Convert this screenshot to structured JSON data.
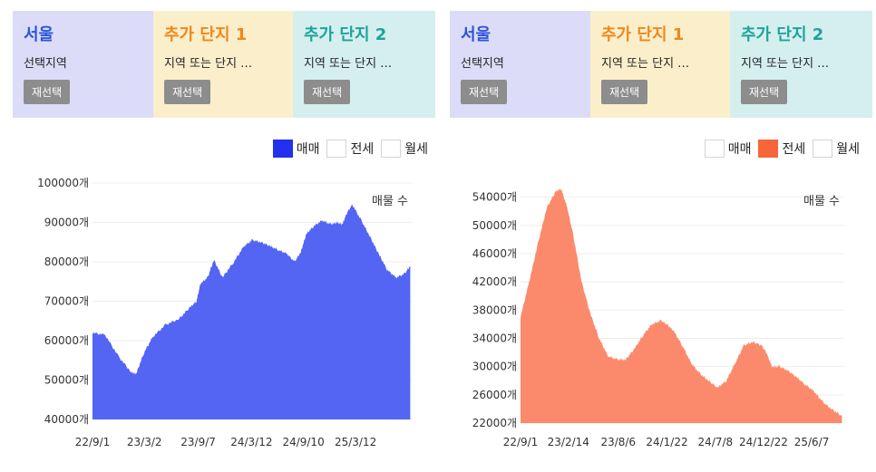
{
  "panels": [
    {
      "regions": [
        {
          "title": "서울",
          "subtitle": "선택지역",
          "button": "재선택",
          "title_color": "#2c56d6",
          "bg": "#dcdcf8"
        },
        {
          "title": "추가 단지 1",
          "subtitle": "지역 또는 단지 …",
          "button": "재선택",
          "title_color": "#f0871b",
          "bg": "#fbefcb"
        },
        {
          "title": "추가 단지 2",
          "subtitle": "지역 또는 단지 …",
          "button": "재선택",
          "title_color": "#1ea39a",
          "bg": "#d5efef"
        }
      ],
      "legend": [
        {
          "label": "매매",
          "active": true,
          "color": "#2330ee"
        },
        {
          "label": "전세",
          "active": false,
          "color": "#ffffff"
        },
        {
          "label": "월세",
          "active": false,
          "color": "#ffffff"
        }
      ]
    },
    {
      "regions": [
        {
          "title": "서울",
          "subtitle": "선택지역",
          "button": "재선택",
          "title_color": "#2c56d6",
          "bg": "#dcdcf8"
        },
        {
          "title": "추가 단지 1",
          "subtitle": "지역 또는 단지 …",
          "button": "재선택",
          "title_color": "#f0871b",
          "bg": "#fbefcb"
        },
        {
          "title": "추가 단지 2",
          "subtitle": "지역 또는 단지 …",
          "button": "재선택",
          "title_color": "#1ea39a",
          "bg": "#d5efef"
        }
      ],
      "legend": [
        {
          "label": "매매",
          "active": false,
          "color": "#ffffff"
        },
        {
          "label": "전세",
          "active": true,
          "color": "#f6663a"
        },
        {
          "label": "월세",
          "active": false,
          "color": "#ffffff"
        }
      ]
    }
  ],
  "chart_data": [
    {
      "type": "area",
      "annotation": "매물 수",
      "color": "#5365f2",
      "ylim": [
        40000,
        100000
      ],
      "y_ticks": [
        40000,
        50000,
        60000,
        70000,
        80000,
        90000,
        100000
      ],
      "y_tick_labels": [
        "40000개",
        "50000개",
        "60000개",
        "70000개",
        "80000개",
        "90000개",
        "100000개"
      ],
      "x_tick_labels": [
        "22/9/1",
        "23/3/2",
        "23/9/7",
        "24/3/12",
        "24/9/10",
        "25/3/12"
      ],
      "x_tick_dates": [
        "2022-09-01",
        "2023-03-02",
        "2023-09-07",
        "2024-03-12",
        "2024-09-10",
        "2025-03-12"
      ],
      "xlim": [
        "2022-09-01",
        "2025-09-25"
      ],
      "x": [
        "2022-09-01",
        "2022-10-15",
        "2022-12-01",
        "2023-01-15",
        "2023-02-01",
        "2023-03-01",
        "2023-04-01",
        "2023-05-15",
        "2023-07-01",
        "2023-08-10",
        "2023-09-01",
        "2023-09-15",
        "2023-10-10",
        "2023-11-01",
        "2023-12-01",
        "2024-01-10",
        "2024-02-15",
        "2024-03-15",
        "2024-04-15",
        "2024-05-15",
        "2024-06-15",
        "2024-07-15",
        "2024-08-10",
        "2024-09-01",
        "2024-09-20",
        "2024-10-15",
        "2024-11-15",
        "2024-12-15",
        "2025-01-05",
        "2025-01-25",
        "2025-02-10",
        "2025-03-01",
        "2025-04-01",
        "2025-05-01",
        "2025-06-01",
        "2025-07-01",
        "2025-08-01",
        "2025-09-01",
        "2025-09-20"
      ],
      "y": [
        62000,
        61500,
        56000,
        52000,
        51500,
        57000,
        61000,
        64000,
        65500,
        68500,
        70000,
        74500,
        76000,
        80500,
        76000,
        80000,
        84000,
        85500,
        85000,
        84000,
        83000,
        82000,
        80000,
        82500,
        87000,
        89000,
        90500,
        89500,
        90000,
        89500,
        92500,
        94500,
        90500,
        86500,
        82000,
        78000,
        76000,
        77000,
        79000
      ]
    },
    {
      "type": "area",
      "annotation": "매물 수",
      "color": "#fb8a6c",
      "ylim": [
        22000,
        56000
      ],
      "y_ticks": [
        22000,
        26000,
        30000,
        34000,
        38000,
        42000,
        46000,
        50000,
        54000
      ],
      "y_tick_labels": [
        "22000개",
        "26000개",
        "30000개",
        "34000개",
        "38000개",
        "42000개",
        "46000개",
        "50000개",
        "54000개"
      ],
      "x_tick_labels": [
        "22/9/1",
        "23/2/14",
        "23/8/6",
        "24/1/22",
        "24/7/8",
        "24/12/22",
        "25/6/7"
      ],
      "x_tick_dates": [
        "2022-09-01",
        "2023-02-14",
        "2023-08-06",
        "2024-01-22",
        "2024-07-08",
        "2024-12-22",
        "2025-06-07"
      ],
      "xlim": [
        "2022-09-01",
        "2025-09-25"
      ],
      "x": [
        "2022-09-01",
        "2022-10-01",
        "2022-11-01",
        "2022-12-01",
        "2023-01-01",
        "2023-01-20",
        "2023-02-10",
        "2023-03-01",
        "2023-04-01",
        "2023-05-01",
        "2023-06-01",
        "2023-07-01",
        "2023-08-01",
        "2023-09-01",
        "2023-10-01",
        "2023-11-01",
        "2023-12-01",
        "2024-01-01",
        "2024-01-22",
        "2024-02-15",
        "2024-03-15",
        "2024-04-15",
        "2024-05-15",
        "2024-06-15",
        "2024-07-15",
        "2024-08-15",
        "2024-09-15",
        "2024-10-15",
        "2024-11-15",
        "2024-12-15",
        "2025-01-01",
        "2025-01-20",
        "2025-02-15",
        "2025-03-15",
        "2025-04-15",
        "2025-05-15",
        "2025-06-15",
        "2025-07-15",
        "2025-08-15",
        "2025-09-20"
      ],
      "y": [
        37000,
        42000,
        47500,
        52500,
        54800,
        55200,
        52500,
        49000,
        42000,
        37500,
        34000,
        31500,
        31000,
        31000,
        32500,
        34500,
        36000,
        36500,
        36000,
        35000,
        33000,
        30500,
        29000,
        28000,
        27000,
        28000,
        30500,
        33000,
        33500,
        33000,
        32000,
        30000,
        30000,
        29500,
        28500,
        27500,
        26500,
        25000,
        24000,
        23000
      ]
    }
  ]
}
